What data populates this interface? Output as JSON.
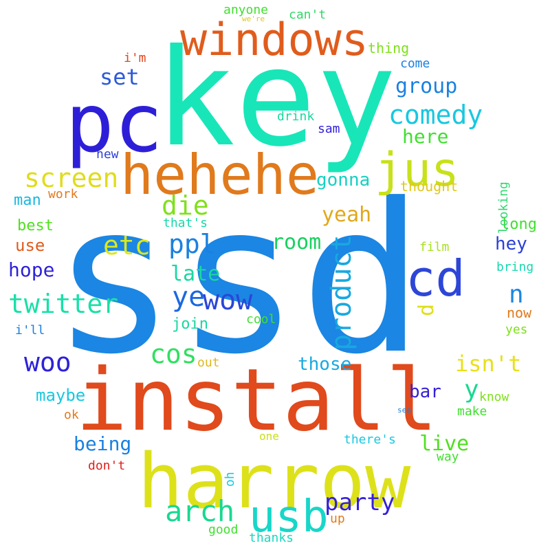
{
  "words": [
    {
      "text": "ssd",
      "color": "#1b86e3"
    },
    {
      "text": "key",
      "color": "#18e6b8"
    },
    {
      "text": "install",
      "color": "#e04a1c"
    },
    {
      "text": "harrow",
      "color": "#dde11a"
    },
    {
      "text": "pc",
      "color": "#2d1fd8"
    },
    {
      "text": "hehehe",
      "color": "#e07a1c"
    },
    {
      "text": "windows",
      "color": "#e05c1c"
    },
    {
      "text": "jus",
      "color": "#c8e11a"
    },
    {
      "text": "cd",
      "color": "#2d46d8"
    },
    {
      "text": "usb",
      "color": "#18d6c8"
    },
    {
      "text": "comedy",
      "color": "#18c8e0"
    },
    {
      "text": "screen",
      "color": "#e0dc1c"
    },
    {
      "text": "twitter",
      "color": "#18e0a8"
    },
    {
      "text": "arch",
      "color": "#18d890"
    },
    {
      "text": "product",
      "color": "#18a8e0"
    },
    {
      "text": "party",
      "color": "#3420d8"
    },
    {
      "text": "ppl",
      "color": "#1b80e0"
    },
    {
      "text": "die",
      "color": "#80e01c"
    },
    {
      "text": "etc",
      "color": "#dde81a"
    },
    {
      "text": "wow",
      "color": "#2a46d8"
    },
    {
      "text": "ye",
      "color": "#1a68e0"
    },
    {
      "text": "woo",
      "color": "#2d22d8"
    },
    {
      "text": "cos",
      "color": "#30e060"
    },
    {
      "text": "isn't",
      "color": "#e8e01a"
    },
    {
      "text": "group",
      "color": "#1b80e0"
    },
    {
      "text": "set",
      "color": "#2d5ad8"
    },
    {
      "text": "here",
      "color": "#40e030"
    },
    {
      "text": "yeah",
      "color": "#e0a81c"
    },
    {
      "text": "room",
      "color": "#18d060"
    },
    {
      "text": "late",
      "color": "#18d8a0"
    },
    {
      "text": "hope",
      "color": "#2d22d8"
    },
    {
      "text": "d",
      "color": "#dde01a"
    },
    {
      "text": "n",
      "color": "#1b86e3"
    },
    {
      "text": "y",
      "color": "#18d890"
    },
    {
      "text": "hey",
      "color": "#2a40d8"
    },
    {
      "text": "gonna",
      "color": "#18d0c0"
    },
    {
      "text": "being",
      "color": "#1a80e0"
    },
    {
      "text": "live",
      "color": "#50e020"
    },
    {
      "text": "those",
      "color": "#18a8e0"
    },
    {
      "text": "bar",
      "color": "#3420d8"
    },
    {
      "text": "maybe",
      "color": "#18c8e0"
    },
    {
      "text": "best",
      "color": "#50e020"
    },
    {
      "text": "use",
      "color": "#e05c1c"
    },
    {
      "text": "man",
      "color": "#18b8e0"
    },
    {
      "text": "join",
      "color": "#18d8a0"
    },
    {
      "text": "long",
      "color": "#40e030"
    },
    {
      "text": "now",
      "color": "#e07a1c"
    },
    {
      "text": "up",
      "color": "#e07a1c"
    },
    {
      "text": "good",
      "color": "#40e030"
    },
    {
      "text": "thanks",
      "color": "#18d8c0"
    },
    {
      "text": "anyone",
      "color": "#40e030"
    },
    {
      "text": "can't",
      "color": "#30d868"
    },
    {
      "text": "thing",
      "color": "#80e01c"
    },
    {
      "text": "come",
      "color": "#1a80e0"
    },
    {
      "text": "i'm",
      "color": "#e0461c"
    },
    {
      "text": "drink",
      "color": "#18d8a0"
    },
    {
      "text": "sam",
      "color": "#3420d8"
    },
    {
      "text": "new",
      "color": "#2d40d8"
    },
    {
      "text": "work",
      "color": "#e07a1c"
    },
    {
      "text": "thought",
      "color": "#e0c81c"
    },
    {
      "text": "looking",
      "color": "#30d870"
    },
    {
      "text": "that's",
      "color": "#18d8a8"
    },
    {
      "text": "film",
      "color": "#a8e01c"
    },
    {
      "text": "bring",
      "color": "#18d8b0"
    },
    {
      "text": "cool",
      "color": "#40e030"
    },
    {
      "text": "i'll",
      "color": "#1a80e0"
    },
    {
      "text": "yes",
      "color": "#80e01c"
    },
    {
      "text": "out",
      "color": "#e0b81c"
    },
    {
      "text": "know",
      "color": "#80e01c"
    },
    {
      "text": "ok",
      "color": "#e07a1c"
    },
    {
      "text": "make",
      "color": "#40e030"
    },
    {
      "text": "see",
      "color": "#1a80e0"
    },
    {
      "text": "one",
      "color": "#c8e01c"
    },
    {
      "text": "there's",
      "color": "#18c8e0"
    },
    {
      "text": "way",
      "color": "#40e030"
    },
    {
      "text": "don't",
      "color": "#e0201c"
    },
    {
      "text": "oh",
      "color": "#18c8e0"
    },
    {
      "text": "we're",
      "color": "#e0c81c"
    }
  ]
}
